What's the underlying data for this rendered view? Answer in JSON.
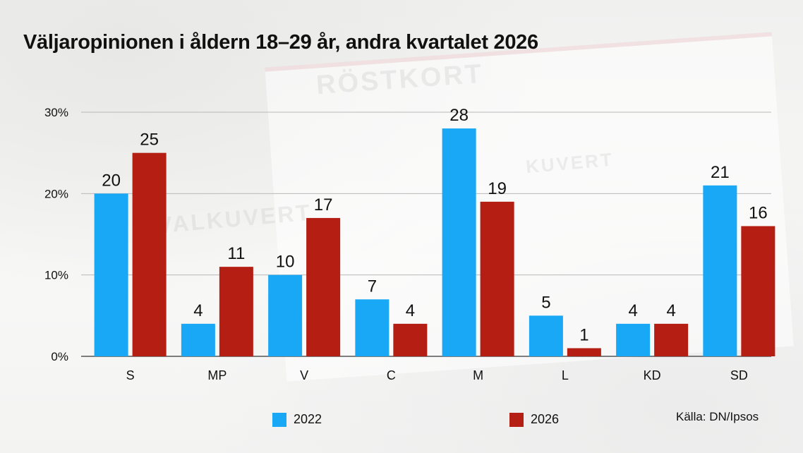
{
  "title": "Väljaropinionen i åldern 18–29 år, andra kvartalet 2026",
  "source": "Källa: DN/Ipsos",
  "background_text": {
    "card_1": "RÖSTKORT",
    "card_2": "VALKUVERT",
    "card_3": "KUVERT"
  },
  "colors": {
    "2022": "#18a8f5",
    "2026": "#b51e12"
  },
  "chart_data": {
    "type": "bar",
    "title": "Väljaropinionen i åldern 18–29 år, andra kvartalet 2026",
    "categories": [
      "S",
      "MP",
      "V",
      "C",
      "M",
      "L",
      "KD",
      "SD"
    ],
    "series": [
      {
        "name": "2022",
        "values": [
          20,
          4,
          10,
          7,
          28,
          5,
          4,
          21
        ]
      },
      {
        "name": "2026",
        "values": [
          25,
          11,
          17,
          4,
          19,
          1,
          4,
          16
        ]
      }
    ],
    "ylim": [
      0,
      30
    ],
    "yticks": [
      0,
      10,
      20,
      30
    ],
    "ytick_labels": [
      "0%",
      "10%",
      "20%",
      "30%"
    ],
    "xlabel": "",
    "ylabel": "",
    "grid": true,
    "legend": "bottom"
  }
}
